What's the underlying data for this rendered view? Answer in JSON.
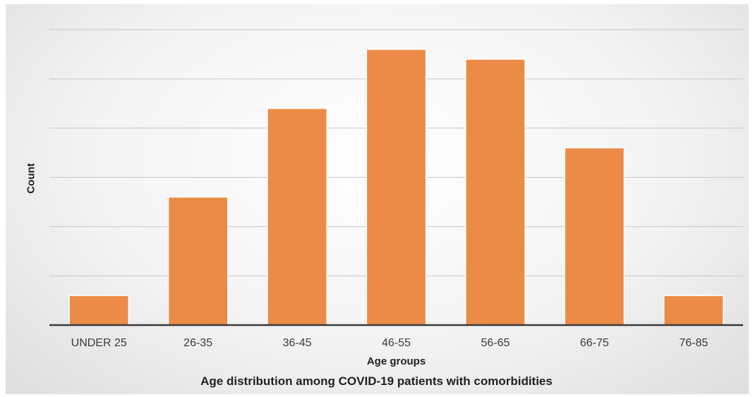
{
  "chart_data": {
    "type": "bar",
    "title": "Age distribution among COVID-19 patients with comorbidities",
    "xlabel": "Age groups",
    "ylabel": "Count",
    "categories": [
      "UNDER 25",
      "26-35",
      "36-45",
      "46-55",
      "56-65",
      "66-75",
      "76-85"
    ],
    "values": [
      0.6,
      2.6,
      4.4,
      5.6,
      5.4,
      3.6,
      0.6
    ],
    "ylim": [
      0,
      6
    ],
    "grid": true,
    "tick_labels_y": false,
    "bar_color": "#ec8b48"
  }
}
